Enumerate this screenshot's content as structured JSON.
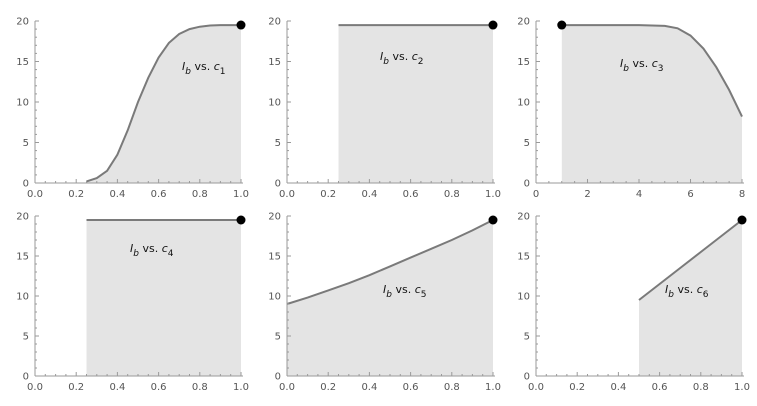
{
  "colors": {
    "fill": "#e4e4e4",
    "curve": "#7a7a7a",
    "frame": "#9a9a9a",
    "marker": "#000000",
    "text": "#555555"
  },
  "chart_data": [
    {
      "type": "area",
      "xlim": [
        0,
        1
      ],
      "ylim": [
        0,
        20
      ],
      "xticks": [
        "0.0",
        "0.2",
        "0.4",
        "0.6",
        "0.8",
        "1.0"
      ],
      "yticks": [
        "0",
        "5",
        "10",
        "15",
        "20"
      ],
      "annotation": {
        "symbol": "I",
        "sub": "b",
        "mid": " vs. ",
        "var": "c",
        "var_sub": "1"
      },
      "x": [
        0.25,
        0.3,
        0.35,
        0.4,
        0.45,
        0.5,
        0.55,
        0.6,
        0.65,
        0.7,
        0.75,
        0.8,
        0.85,
        0.9,
        0.95,
        1.0
      ],
      "y": [
        0.2,
        0.6,
        1.5,
        3.5,
        6.5,
        10.0,
        13.0,
        15.5,
        17.3,
        18.4,
        19.0,
        19.3,
        19.45,
        19.5,
        19.5,
        19.5
      ],
      "marker": {
        "x": 1.0,
        "y": 19.5
      }
    },
    {
      "type": "area",
      "xlim": [
        0,
        1
      ],
      "ylim": [
        0,
        20
      ],
      "xticks": [
        "0.0",
        "0.2",
        "0.4",
        "0.6",
        "0.8",
        "1.0"
      ],
      "yticks": [
        "0",
        "5",
        "10",
        "15",
        "20"
      ],
      "annotation": {
        "symbol": "I",
        "sub": "b",
        "mid": " vs. ",
        "var": "c",
        "var_sub": "2"
      },
      "x": [
        0.25,
        1.0
      ],
      "y": [
        19.5,
        19.5
      ],
      "marker": {
        "x": 1.0,
        "y": 19.5
      }
    },
    {
      "type": "area",
      "xlim": [
        0,
        8
      ],
      "ylim": [
        0,
        20
      ],
      "xticks": [
        "0",
        "2",
        "4",
        "6",
        "8"
      ],
      "yticks": [
        "0",
        "5",
        "10",
        "15",
        "20"
      ],
      "annotation": {
        "symbol": "I",
        "sub": "b",
        "mid": " vs. ",
        "var": "c",
        "var_sub": "3"
      },
      "x": [
        1.0,
        2.0,
        3.0,
        4.0,
        5.0,
        5.5,
        6.0,
        6.5,
        7.0,
        7.5,
        8.0
      ],
      "y": [
        19.5,
        19.5,
        19.5,
        19.5,
        19.4,
        19.1,
        18.2,
        16.6,
        14.3,
        11.5,
        8.2
      ],
      "marker": {
        "x": 1.0,
        "y": 19.5
      }
    },
    {
      "type": "area",
      "xlim": [
        0,
        1
      ],
      "ylim": [
        0,
        20
      ],
      "xticks": [
        "0.0",
        "0.2",
        "0.4",
        "0.6",
        "0.8",
        "1.0"
      ],
      "yticks": [
        "0",
        "5",
        "10",
        "15",
        "20"
      ],
      "annotation": {
        "symbol": "I",
        "sub": "b",
        "mid": " vs. ",
        "var": "c",
        "var_sub": "4"
      },
      "x": [
        0.25,
        1.0
      ],
      "y": [
        19.5,
        19.5
      ],
      "marker": {
        "x": 1.0,
        "y": 19.5
      }
    },
    {
      "type": "area",
      "xlim": [
        0,
        1
      ],
      "ylim": [
        0,
        20
      ],
      "xticks": [
        "0.0",
        "0.2",
        "0.4",
        "0.6",
        "0.8",
        "1.0"
      ],
      "yticks": [
        "0",
        "5",
        "10",
        "15",
        "20"
      ],
      "annotation": {
        "symbol": "I",
        "sub": "b",
        "mid": " vs. ",
        "var": "c",
        "var_sub": "5"
      },
      "x": [
        0.0,
        0.1,
        0.2,
        0.3,
        0.4,
        0.5,
        0.6,
        0.7,
        0.8,
        0.9,
        1.0
      ],
      "y": [
        9.0,
        9.8,
        10.7,
        11.6,
        12.6,
        13.7,
        14.8,
        15.9,
        17.0,
        18.2,
        19.5
      ],
      "marker": {
        "x": 1.0,
        "y": 19.5
      }
    },
    {
      "type": "area",
      "xlim": [
        0,
        1
      ],
      "ylim": [
        0,
        20
      ],
      "xticks": [
        "0.0",
        "0.2",
        "0.4",
        "0.6",
        "0.8",
        "1.0"
      ],
      "yticks": [
        "0",
        "5",
        "10",
        "15",
        "20"
      ],
      "annotation": {
        "symbol": "I",
        "sub": "b",
        "mid": " vs. ",
        "var": "c",
        "var_sub": "6"
      },
      "x": [
        0.5,
        0.6,
        0.7,
        0.8,
        0.9,
        1.0
      ],
      "y": [
        9.5,
        11.5,
        13.5,
        15.5,
        17.5,
        19.5
      ],
      "marker": {
        "x": 1.0,
        "y": 19.5
      }
    }
  ]
}
